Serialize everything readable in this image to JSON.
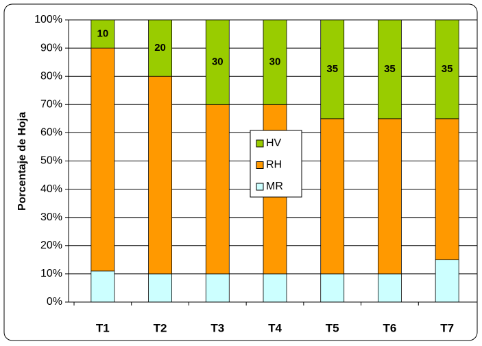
{
  "chart_data": {
    "type": "stacked_bar_100",
    "y_label": "Porcentaje de Hoja",
    "categories": [
      "T1",
      "T2",
      "T3",
      "T4",
      "T5",
      "T6",
      "T7"
    ],
    "series": [
      {
        "name": "MR",
        "color": "#ccffff",
        "values": [
          11,
          10,
          10,
          10,
          10,
          10,
          15
        ]
      },
      {
        "name": "RH",
        "color": "#ff9900",
        "values": [
          79,
          70,
          60,
          60,
          55,
          55,
          50
        ]
      },
      {
        "name": "HV",
        "color": "#99cc00",
        "values": [
          10,
          20,
          30,
          30,
          35,
          35,
          35
        ],
        "show_labels": true
      }
    ],
    "ylim": [
      0,
      100
    ],
    "yticks": [
      {
        "value": 0,
        "label": "0%"
      },
      {
        "value": 10,
        "label": "10%"
      },
      {
        "value": 20,
        "label": "20%"
      },
      {
        "value": 30,
        "label": "30%"
      },
      {
        "value": 40,
        "label": "40%"
      },
      {
        "value": 50,
        "label": "50%"
      },
      {
        "value": 60,
        "label": "60%"
      },
      {
        "value": 70,
        "label": "70%"
      },
      {
        "value": 80,
        "label": "80%"
      },
      {
        "value": 90,
        "label": "90%"
      },
      {
        "value": 100,
        "label": "100%"
      }
    ],
    "grid": true,
    "legend": "center"
  }
}
